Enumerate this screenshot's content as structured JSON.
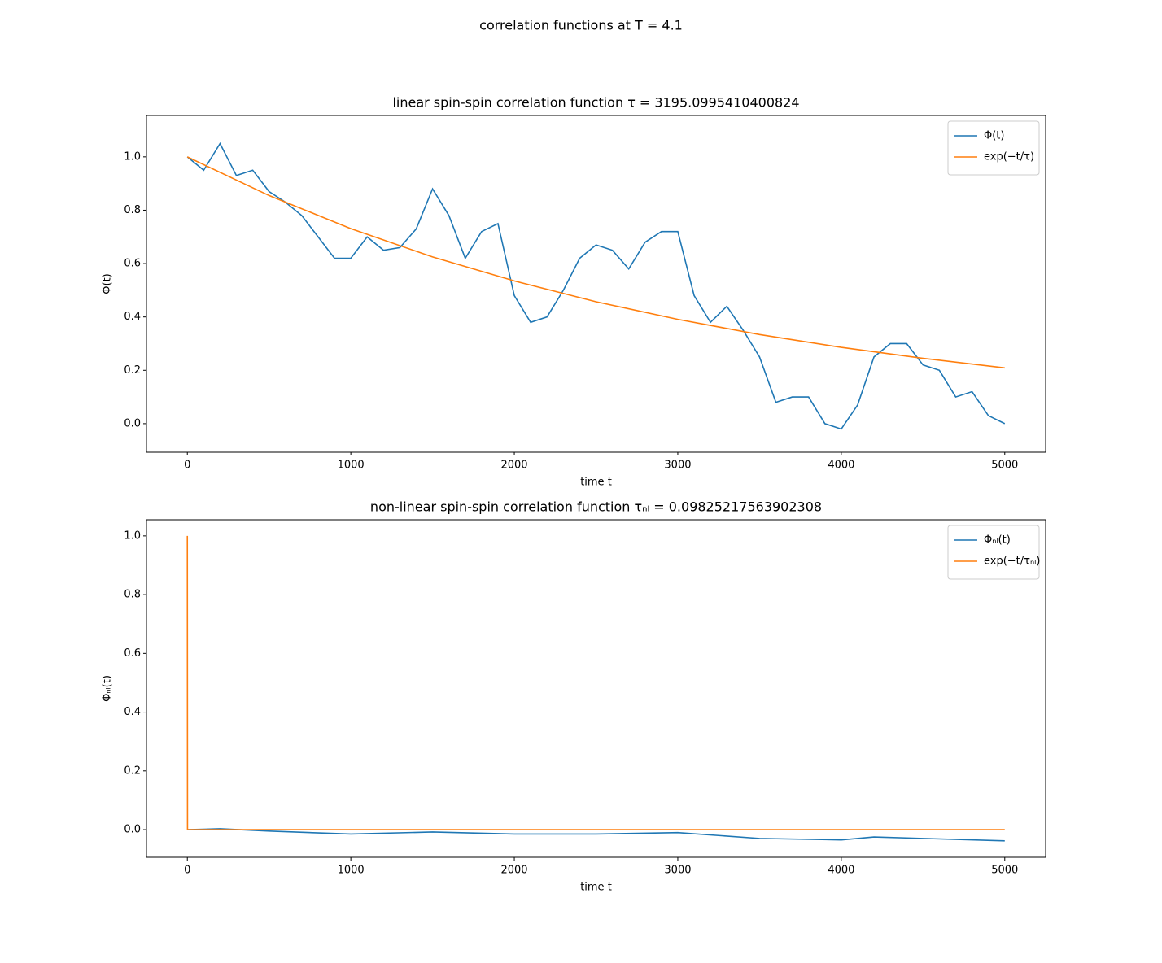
{
  "title": "correlation functions at T = 4.1",
  "chart_data": [
    {
      "type": "line",
      "title": "linear spin-spin correlation function τ = 3195.0995410400824",
      "x_label": "time t",
      "y_label": "Φ(t)",
      "xlim": [
        -250,
        5250
      ],
      "ylim": [
        -0.107,
        1.155
      ],
      "xticks": [
        0,
        1000,
        2000,
        3000,
        4000,
        5000
      ],
      "yticks": [
        {
          "value": 0,
          "label": "0.0"
        },
        0.2,
        0.4,
        0.6,
        0.8,
        {
          "value": 1,
          "label": "1.0"
        }
      ],
      "legend": "upper right",
      "series": [
        {
          "name": "Φ(t)",
          "color": "#1f77b4",
          "x": [
            0,
            100,
            200,
            300,
            400,
            500,
            600,
            700,
            800,
            900,
            1000,
            1100,
            1200,
            1300,
            1400,
            1500,
            1600,
            1700,
            1800,
            1900,
            2000,
            2100,
            2200,
            2300,
            2400,
            2500,
            2600,
            2700,
            2800,
            2900,
            3000,
            3100,
            3200,
            3300,
            3400,
            3500,
            3600,
            3700,
            3800,
            3900,
            4000,
            4100,
            4200,
            4300,
            4400,
            4500,
            4600,
            4700,
            4800,
            4900,
            5000
          ],
          "values": [
            1.0,
            0.95,
            1.05,
            0.93,
            0.95,
            0.87,
            0.83,
            0.78,
            0.7,
            0.62,
            0.62,
            0.7,
            0.65,
            0.66,
            0.73,
            0.88,
            0.78,
            0.62,
            0.72,
            0.75,
            0.48,
            0.38,
            0.4,
            0.5,
            0.62,
            0.67,
            0.65,
            0.58,
            0.68,
            0.72,
            0.72,
            0.48,
            0.38,
            0.44,
            0.35,
            0.25,
            0.08,
            0.1,
            0.1,
            0.0,
            -0.02,
            0.07,
            0.25,
            0.3,
            0.3,
            0.22,
            0.2,
            0.1,
            0.12,
            0.03,
            0.0
          ]
        },
        {
          "name": "exp(−t/τ)",
          "color": "#ff7f0e",
          "x": [
            0,
            500,
            1000,
            1500,
            2000,
            2500,
            3000,
            3500,
            4000,
            4500,
            5000
          ],
          "values": [
            1.0,
            0.855,
            0.731,
            0.625,
            0.535,
            0.457,
            0.391,
            0.334,
            0.286,
            0.245,
            0.209
          ]
        }
      ]
    },
    {
      "type": "line",
      "title": "non-linear spin-spin correlation function τₙₗ = 0.09825217563902308",
      "x_label": "time t",
      "y_label": "Φₙₗ(t)",
      "xlim": [
        -250,
        5250
      ],
      "ylim": [
        -0.094,
        1.055
      ],
      "xticks": [
        0,
        1000,
        2000,
        3000,
        4000,
        5000
      ],
      "yticks": [
        {
          "value": 0,
          "label": "0.0"
        },
        0.2,
        0.4,
        0.6,
        0.8,
        {
          "value": 1,
          "label": "1.0"
        }
      ],
      "legend": "upper right",
      "series": [
        {
          "name": "Φₙₗ(t)",
          "color": "#1f77b4",
          "x": [
            0,
            200,
            500,
            1000,
            1500,
            2000,
            2500,
            3000,
            3500,
            4000,
            4200,
            4500,
            5000
          ],
          "values": [
            0.0,
            0.003,
            -0.005,
            -0.015,
            -0.008,
            -0.015,
            -0.015,
            -0.01,
            -0.03,
            -0.035,
            -0.025,
            -0.03,
            -0.038
          ]
        },
        {
          "name": "exp(−t/τₙₗ)",
          "color": "#ff7f0e",
          "x": [
            0,
            1,
            5000
          ],
          "values": [
            1.0,
            0.0,
            0.0
          ]
        }
      ]
    }
  ]
}
